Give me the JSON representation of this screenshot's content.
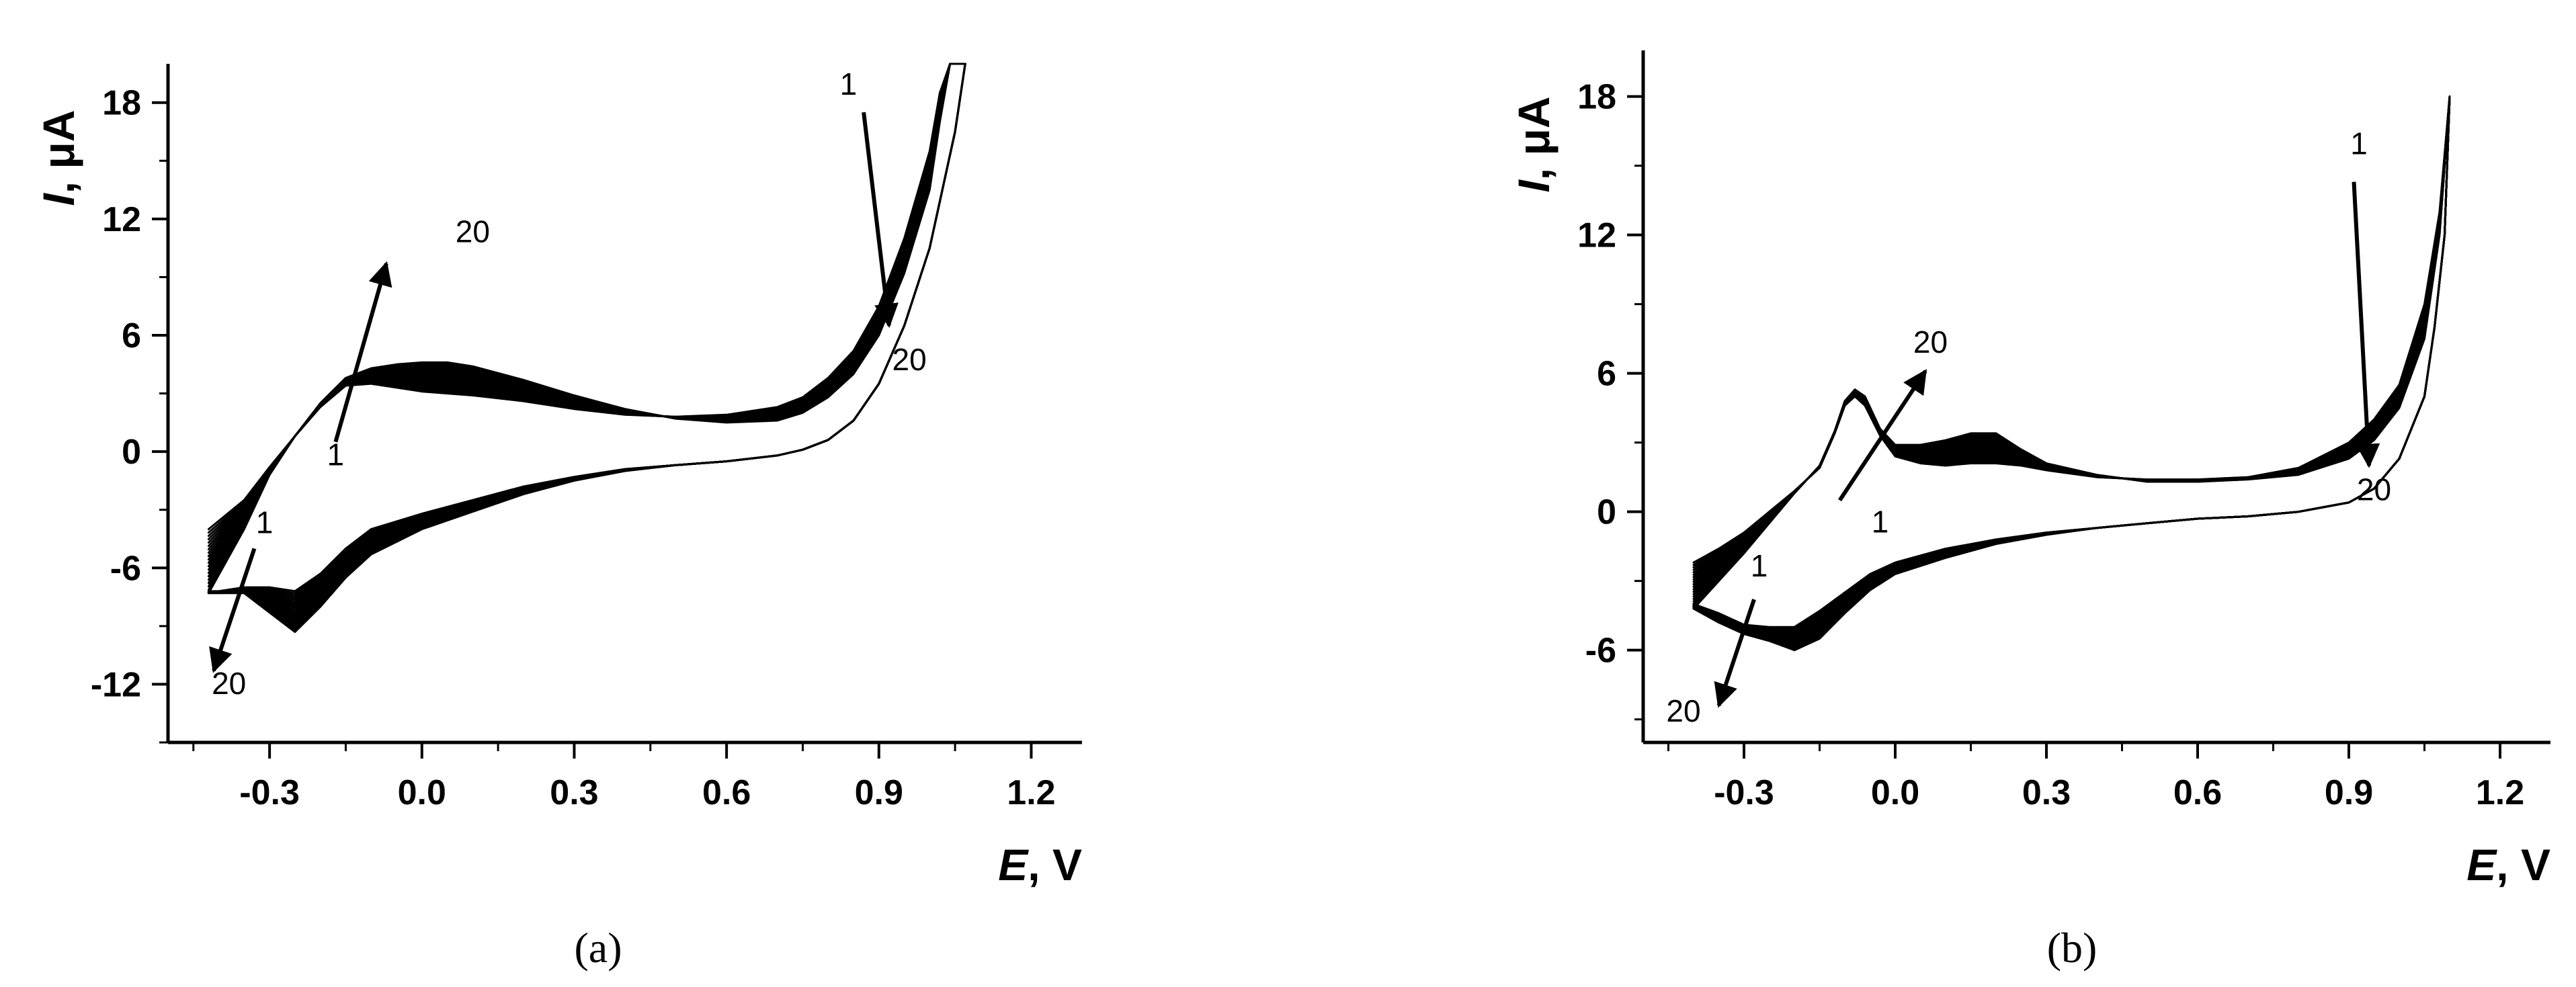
{
  "figure": {
    "panels": [
      {
        "label_text": "(a)"
      },
      {
        "label_text": "(b)"
      }
    ]
  },
  "chart_data": [
    {
      "type": "line",
      "panel": "(a)",
      "xlabel": "E, V",
      "ylabel": "I, μA",
      "xlim": [
        -0.5,
        1.3
      ],
      "ylim": [
        -15,
        20
      ],
      "x_ticks": [
        -0.3,
        0.0,
        0.3,
        0.6,
        0.9,
        1.2
      ],
      "x_tick_labels": [
        "-0.3",
        "0.0",
        "0.3",
        "0.6",
        "0.9",
        "1.2"
      ],
      "y_ticks": [
        -12,
        -6,
        0,
        6,
        12,
        18
      ],
      "y_tick_labels": [
        "-12",
        "-6",
        "0",
        "6",
        "12",
        "18"
      ],
      "cycles": 20,
      "series": [
        {
          "role": "cycle 1",
          "forward": [
            [
              -0.42,
              -4.0
            ],
            [
              -0.35,
              -2.5
            ],
            [
              -0.3,
              -0.8
            ],
            [
              -0.25,
              0.8
            ],
            [
              -0.2,
              2.3
            ],
            [
              -0.15,
              3.4
            ],
            [
              -0.1,
              3.5
            ],
            [
              -0.05,
              3.3
            ],
            [
              0.0,
              3.1
            ],
            [
              0.05,
              3.0
            ],
            [
              0.1,
              2.9
            ],
            [
              0.2,
              2.6
            ],
            [
              0.3,
              2.2
            ],
            [
              0.4,
              1.9
            ],
            [
              0.5,
              1.8
            ],
            [
              0.6,
              1.9
            ],
            [
              0.7,
              2.3
            ],
            [
              0.75,
              2.8
            ],
            [
              0.8,
              3.8
            ],
            [
              0.85,
              5.2
            ],
            [
              0.9,
              7.5
            ],
            [
              0.95,
              11.0
            ],
            [
              1.0,
              15.5
            ],
            [
              1.02,
              18.5
            ],
            [
              1.04,
              20.0
            ]
          ],
          "reverse": [
            [
              1.07,
              20.0
            ],
            [
              1.05,
              16.5
            ],
            [
              1.0,
              10.5
            ],
            [
              0.95,
              6.5
            ],
            [
              0.9,
              3.5
            ],
            [
              0.85,
              1.6
            ],
            [
              0.8,
              0.6
            ],
            [
              0.75,
              0.1
            ],
            [
              0.7,
              -0.2
            ],
            [
              0.6,
              -0.5
            ],
            [
              0.5,
              -0.7
            ],
            [
              0.4,
              -0.9
            ],
            [
              0.3,
              -1.3
            ],
            [
              0.2,
              -1.8
            ],
            [
              0.1,
              -2.5
            ],
            [
              0.0,
              -3.2
            ],
            [
              -0.1,
              -4.0
            ],
            [
              -0.15,
              -5.0
            ],
            [
              -0.2,
              -6.3
            ],
            [
              -0.25,
              -7.2
            ],
            [
              -0.3,
              -7.0
            ],
            [
              -0.35,
              -7.0
            ],
            [
              -0.4,
              -7.2
            ],
            [
              -0.42,
              -7.2
            ]
          ]
        },
        {
          "role": "cycle 20",
          "forward": [
            [
              -0.42,
              -7.3
            ],
            [
              -0.35,
              -4.0
            ],
            [
              -0.3,
              -1.2
            ],
            [
              -0.25,
              0.8
            ],
            [
              -0.2,
              2.5
            ],
            [
              -0.15,
              3.8
            ],
            [
              -0.1,
              4.3
            ],
            [
              -0.05,
              4.5
            ],
            [
              0.0,
              4.6
            ],
            [
              0.05,
              4.6
            ],
            [
              0.1,
              4.4
            ],
            [
              0.2,
              3.7
            ],
            [
              0.3,
              2.9
            ],
            [
              0.4,
              2.2
            ],
            [
              0.5,
              1.7
            ],
            [
              0.6,
              1.5
            ],
            [
              0.7,
              1.6
            ],
            [
              0.75,
              2.0
            ],
            [
              0.8,
              2.8
            ],
            [
              0.85,
              4.0
            ],
            [
              0.9,
              6.0
            ],
            [
              0.95,
              9.2
            ],
            [
              1.0,
              13.5
            ],
            [
              1.02,
              17.0
            ],
            [
              1.04,
              20.0
            ]
          ],
          "reverse": [
            [
              1.07,
              20.0
            ],
            [
              1.05,
              16.5
            ],
            [
              1.0,
              10.5
            ],
            [
              0.95,
              6.5
            ],
            [
              0.9,
              3.5
            ],
            [
              0.85,
              1.6
            ],
            [
              0.8,
              0.6
            ],
            [
              0.75,
              0.1
            ],
            [
              0.7,
              -0.2
            ],
            [
              0.6,
              -0.5
            ],
            [
              0.5,
              -0.7
            ],
            [
              0.4,
              -1.0
            ],
            [
              0.3,
              -1.5
            ],
            [
              0.2,
              -2.2
            ],
            [
              0.1,
              -3.1
            ],
            [
              0.0,
              -4.0
            ],
            [
              -0.1,
              -5.3
            ],
            [
              -0.15,
              -6.5
            ],
            [
              -0.2,
              -8.0
            ],
            [
              -0.25,
              -9.3
            ],
            [
              -0.3,
              -8.3
            ],
            [
              -0.35,
              -7.3
            ],
            [
              -0.4,
              -7.3
            ],
            [
              -0.42,
              -7.3
            ]
          ]
        }
      ],
      "annotations": [
        {
          "text": "1",
          "x": -0.17,
          "y": -0.7
        },
        {
          "text": "20",
          "x": 0.1,
          "y": 10.8
        },
        {
          "text": "1",
          "x": 0.84,
          "y": 18.4
        },
        {
          "text": "20",
          "x": 0.96,
          "y": 4.2
        },
        {
          "text": "1",
          "x": -0.31,
          "y": -4.2
        },
        {
          "text": "20",
          "x": -0.38,
          "y": -12.5
        }
      ],
      "arrows": [
        {
          "from": [
            -0.17,
            0.5
          ],
          "to": [
            -0.07,
            9.7
          ]
        },
        {
          "from": [
            0.87,
            17.5
          ],
          "to": [
            0.92,
            6.5
          ]
        },
        {
          "from": [
            -0.33,
            -5.0
          ],
          "to": [
            -0.41,
            -11.3
          ]
        }
      ]
    },
    {
      "type": "line",
      "panel": "(b)",
      "xlabel": "E, V",
      "ylabel": "I, μA",
      "xlim": [
        -0.5,
        1.3
      ],
      "ylim": [
        -10,
        20
      ],
      "x_ticks": [
        -0.3,
        0.0,
        0.3,
        0.6,
        0.9,
        1.2
      ],
      "x_tick_labels": [
        "-0.3",
        "0.0",
        "0.3",
        "0.6",
        "0.9",
        "1.2"
      ],
      "y_ticks": [
        -6,
        0,
        6,
        12,
        18
      ],
      "y_tick_labels": [
        "-6",
        "0",
        "6",
        "12",
        "18"
      ],
      "cycles": 20,
      "series": [
        {
          "role": "cycle 1",
          "forward": [
            [
              -0.4,
              -2.2
            ],
            [
              -0.35,
              -1.6
            ],
            [
              -0.3,
              -0.9
            ],
            [
              -0.25,
              0.0
            ],
            [
              -0.2,
              0.9
            ],
            [
              -0.15,
              1.9
            ],
            [
              -0.12,
              3.4
            ],
            [
              -0.1,
              4.6
            ],
            [
              -0.08,
              5.0
            ],
            [
              -0.06,
              4.6
            ],
            [
              -0.03,
              3.3
            ],
            [
              0.0,
              2.4
            ],
            [
              0.05,
              2.1
            ],
            [
              0.1,
              2.0
            ],
            [
              0.15,
              2.1
            ],
            [
              0.2,
              2.1
            ],
            [
              0.25,
              2.0
            ],
            [
              0.3,
              1.8
            ],
            [
              0.4,
              1.5
            ],
            [
              0.5,
              1.4
            ],
            [
              0.6,
              1.4
            ],
            [
              0.7,
              1.5
            ],
            [
              0.8,
              1.9
            ],
            [
              0.9,
              3.0
            ],
            [
              0.95,
              4.0
            ],
            [
              1.0,
              5.5
            ],
            [
              1.05,
              9.0
            ],
            [
              1.08,
              13.0
            ],
            [
              1.1,
              18.0
            ]
          ],
          "reverse": [
            [
              1.1,
              18.0
            ],
            [
              1.09,
              12.0
            ],
            [
              1.07,
              8.0
            ],
            [
              1.05,
              5.0
            ],
            [
              1.0,
              2.3
            ],
            [
              0.95,
              1.0
            ],
            [
              0.9,
              0.4
            ],
            [
              0.8,
              0.0
            ],
            [
              0.7,
              -0.2
            ],
            [
              0.6,
              -0.3
            ],
            [
              0.5,
              -0.5
            ],
            [
              0.4,
              -0.7
            ],
            [
              0.3,
              -0.9
            ],
            [
              0.2,
              -1.2
            ],
            [
              0.1,
              -1.6
            ],
            [
              0.0,
              -2.2
            ],
            [
              -0.05,
              -2.7
            ],
            [
              -0.1,
              -3.5
            ],
            [
              -0.15,
              -4.3
            ],
            [
              -0.2,
              -5.0
            ],
            [
              -0.25,
              -5.0
            ],
            [
              -0.3,
              -4.9
            ],
            [
              -0.35,
              -4.4
            ],
            [
              -0.4,
              -4.0
            ]
          ]
        },
        {
          "role": "cycle 20",
          "forward": [
            [
              -0.4,
              -4.2
            ],
            [
              -0.35,
              -3.0
            ],
            [
              -0.3,
              -1.8
            ],
            [
              -0.25,
              -0.5
            ],
            [
              -0.2,
              0.8
            ],
            [
              -0.15,
              2.0
            ],
            [
              -0.12,
              3.5
            ],
            [
              -0.1,
              4.8
            ],
            [
              -0.08,
              5.3
            ],
            [
              -0.06,
              5.0
            ],
            [
              -0.03,
              3.6
            ],
            [
              0.0,
              2.9
            ],
            [
              0.05,
              2.9
            ],
            [
              0.1,
              3.1
            ],
            [
              0.15,
              3.4
            ],
            [
              0.18,
              3.6
            ],
            [
              0.2,
              3.4
            ],
            [
              0.25,
              2.7
            ],
            [
              0.3,
              2.1
            ],
            [
              0.4,
              1.6
            ],
            [
              0.5,
              1.3
            ],
            [
              0.6,
              1.3
            ],
            [
              0.7,
              1.4
            ],
            [
              0.8,
              1.6
            ],
            [
              0.9,
              2.3
            ],
            [
              0.95,
              3.1
            ],
            [
              1.0,
              4.5
            ],
            [
              1.05,
              7.5
            ],
            [
              1.08,
              12.0
            ],
            [
              1.1,
              18.0
            ]
          ],
          "reverse": [
            [
              1.1,
              18.0
            ],
            [
              1.09,
              12.0
            ],
            [
              1.07,
              8.0
            ],
            [
              1.05,
              5.0
            ],
            [
              1.0,
              2.3
            ],
            [
              0.95,
              1.0
            ],
            [
              0.9,
              0.4
            ],
            [
              0.8,
              0.0
            ],
            [
              0.7,
              -0.2
            ],
            [
              0.6,
              -0.3
            ],
            [
              0.5,
              -0.5
            ],
            [
              0.4,
              -0.7
            ],
            [
              0.3,
              -1.0
            ],
            [
              0.2,
              -1.4
            ],
            [
              0.1,
              -2.0
            ],
            [
              0.0,
              -2.7
            ],
            [
              -0.05,
              -3.4
            ],
            [
              -0.1,
              -4.4
            ],
            [
              -0.15,
              -5.5
            ],
            [
              -0.2,
              -6.0
            ],
            [
              -0.25,
              -5.6
            ],
            [
              -0.3,
              -5.3
            ],
            [
              -0.35,
              -4.8
            ],
            [
              -0.4,
              -4.2
            ]
          ]
        }
      ],
      "annotations": [
        {
          "text": "1",
          "x": -0.03,
          "y": -0.9
        },
        {
          "text": "20",
          "x": 0.07,
          "y": 6.9
        },
        {
          "text": "1",
          "x": 0.92,
          "y": 15.5
        },
        {
          "text": "20",
          "x": 0.95,
          "y": 0.5
        },
        {
          "text": "1",
          "x": -0.27,
          "y": -2.8
        },
        {
          "text": "20",
          "x": -0.42,
          "y": -9.1
        }
      ],
      "arrows": [
        {
          "from": [
            -0.11,
            0.5
          ],
          "to": [
            0.06,
            6.1
          ]
        },
        {
          "from": [
            0.91,
            14.3
          ],
          "to": [
            0.94,
            2.0
          ]
        },
        {
          "from": [
            -0.28,
            -3.8
          ],
          "to": [
            -0.35,
            -8.4
          ]
        }
      ]
    }
  ]
}
